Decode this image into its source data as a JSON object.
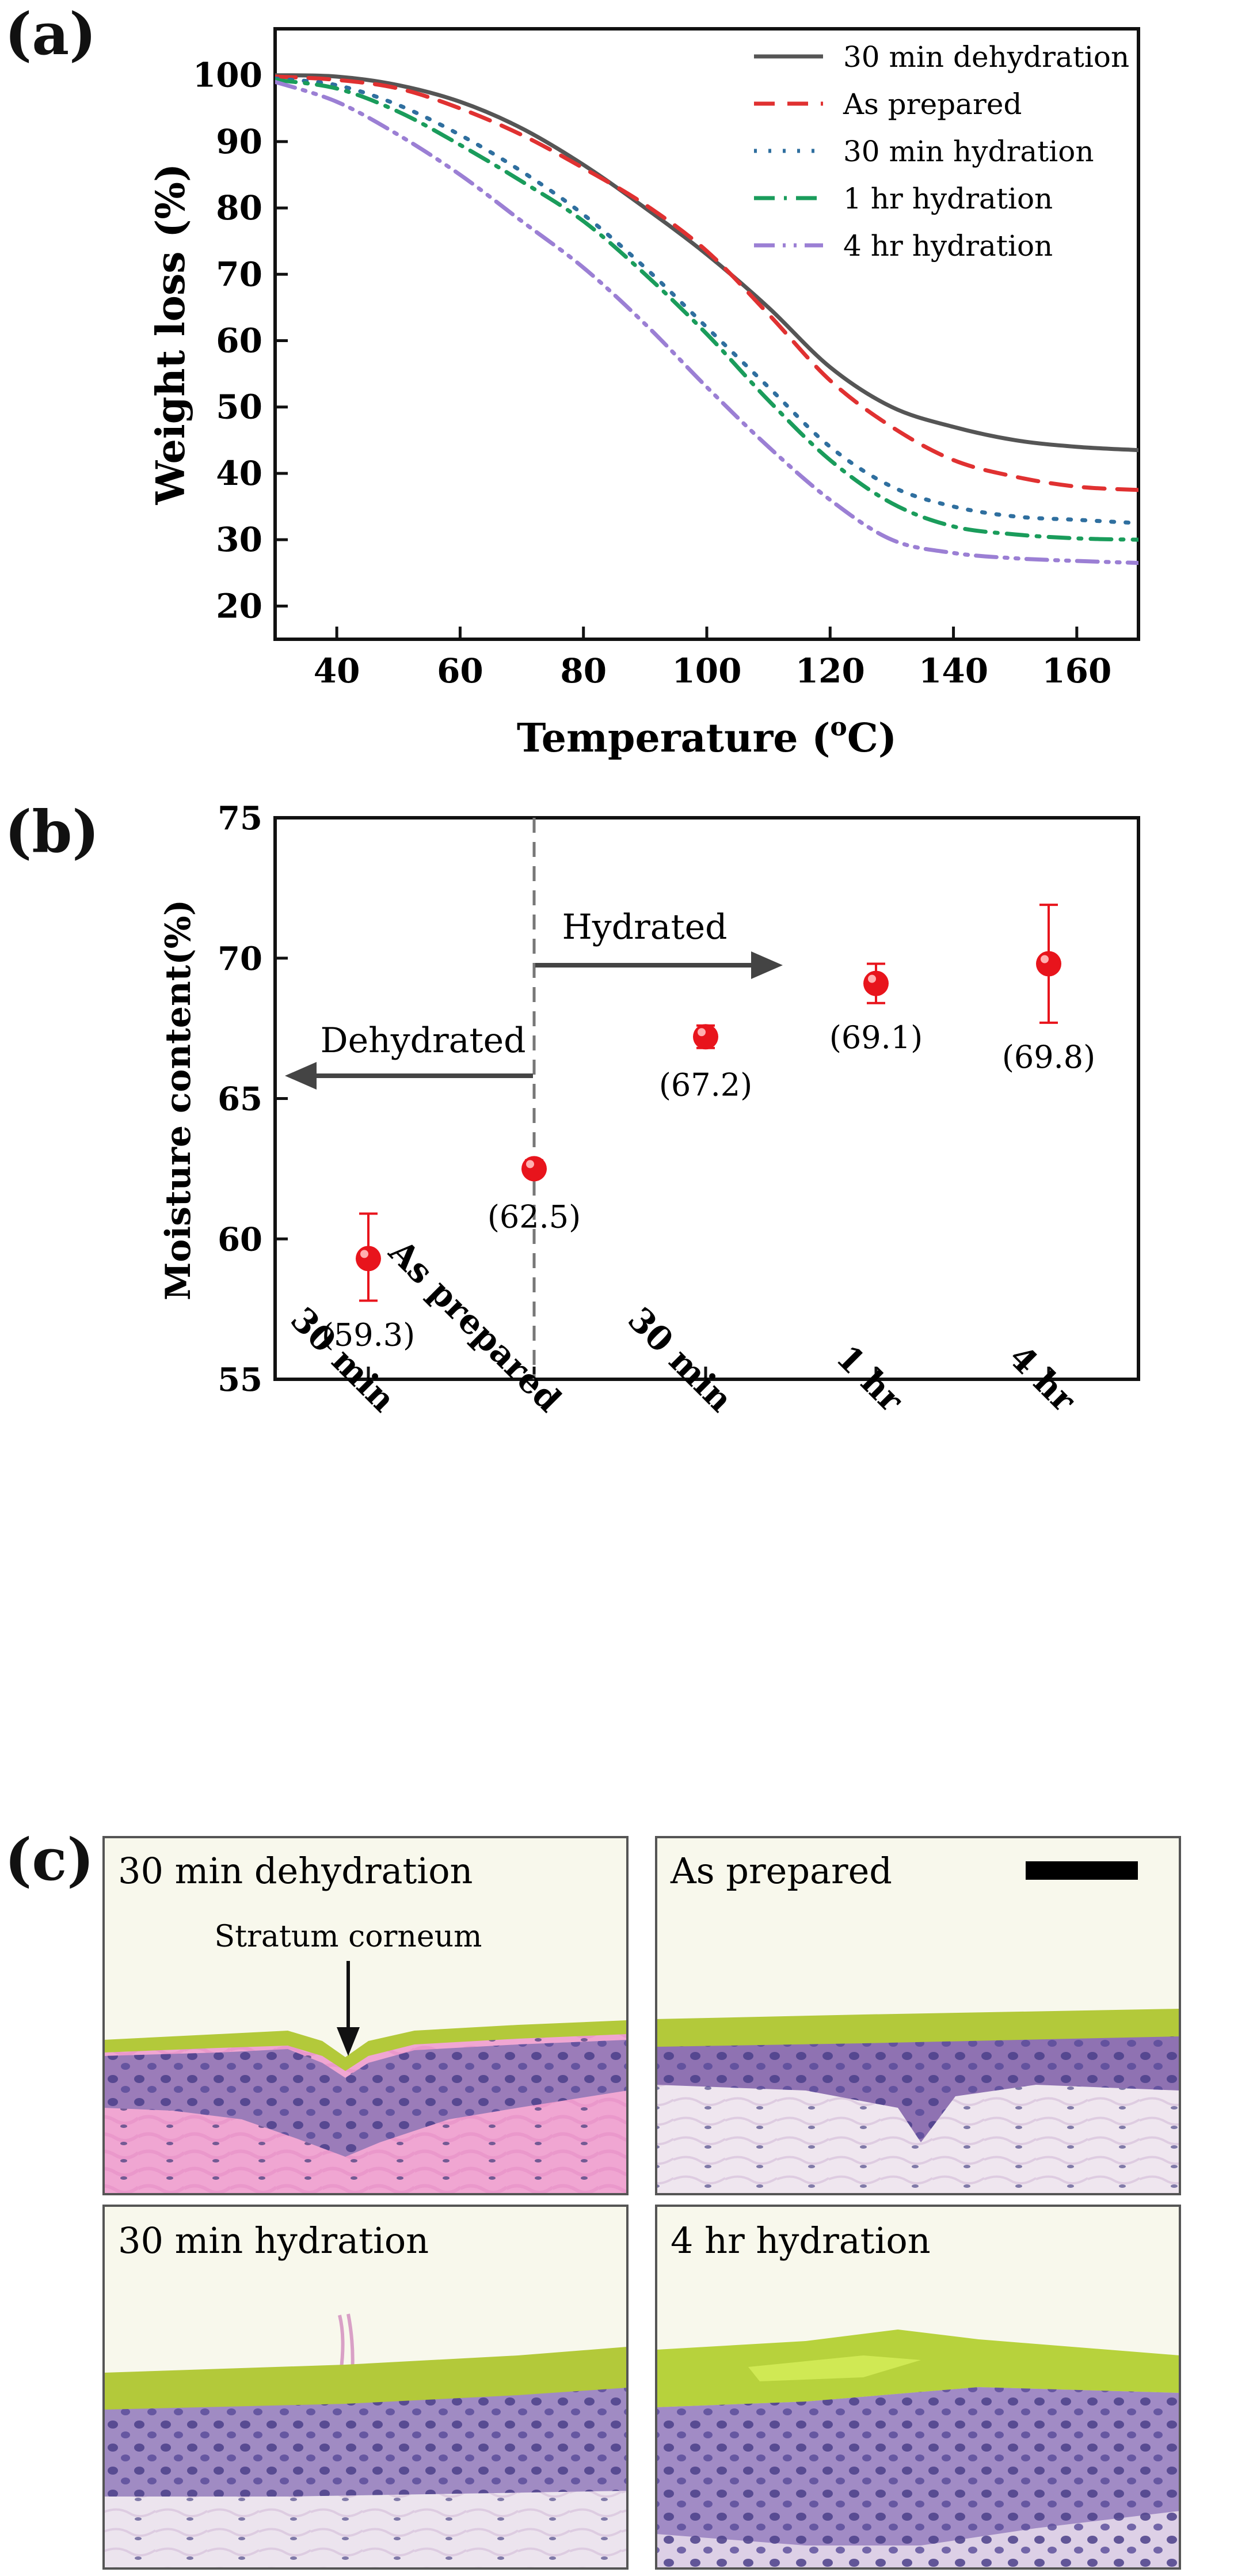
{
  "panel_labels": {
    "a": "(a)",
    "b": "(b)",
    "c": "(c)"
  },
  "chart_data": [
    {
      "type": "line",
      "xlabel": "Temperature (°C)",
      "xlabel_main": "Temperature (",
      "xlabel_sup": "o",
      "xlabel_unit": "C)",
      "ylabel": "Weight loss (%)",
      "xlim": [
        30,
        170
      ],
      "ylim": [
        15,
        107
      ],
      "xticks": [
        40,
        60,
        80,
        100,
        120,
        140,
        160
      ],
      "yticks": [
        20,
        30,
        40,
        50,
        60,
        70,
        80,
        90,
        100
      ],
      "legend_position": "top-right",
      "x": [
        30,
        40,
        50,
        60,
        70,
        80,
        90,
        100,
        110,
        120,
        130,
        140,
        150,
        160,
        170
      ],
      "series": [
        {
          "name": "30 min dehydration",
          "color": "#555555",
          "dash": "solid",
          "values": [
            100,
            99.8,
            98.5,
            96,
            92,
            86.5,
            80,
            73,
            65,
            56,
            50,
            47,
            45,
            44,
            43.5
          ]
        },
        {
          "name": "As prepared",
          "color": "#e03131",
          "dash": "dashed",
          "values": [
            99.8,
            99.3,
            98,
            95,
            91,
            86,
            80.5,
            73.5,
            64,
            54,
            47,
            42,
            39.5,
            38,
            37.5
          ]
        },
        {
          "name": "30 min hydration",
          "color": "#2f6f9f",
          "dash": "dotted",
          "values": [
            99.5,
            98.5,
            95.5,
            91,
            85.5,
            79,
            71,
            62,
            53,
            44,
            38,
            35,
            33.5,
            33,
            32.5
          ]
        },
        {
          "name": "1 hr hydration",
          "color": "#1a9c5b",
          "dash": "dashdot",
          "values": [
            99.3,
            98,
            94.5,
            89.5,
            84,
            78,
            70,
            61,
            51,
            42,
            35.5,
            32,
            30.8,
            30.2,
            30
          ]
        },
        {
          "name": "4 hr hydration",
          "color": "#9b7fd4",
          "dash": "dashdotdot",
          "values": [
            99,
            96,
            91,
            85,
            78,
            71,
            62.5,
            53,
            44,
            36,
            30,
            28,
            27.2,
            26.8,
            26.5
          ]
        }
      ]
    },
    {
      "type": "scatter",
      "ylabel": "Moisture content(%)",
      "categories": [
        "30 min",
        "As prepared",
        "30 min",
        "1 hr",
        "4 hr"
      ],
      "ylim": [
        55,
        75
      ],
      "yticks": [
        55,
        60,
        65,
        70,
        75
      ],
      "values": [
        59.3,
        62.5,
        67.2,
        69.1,
        69.8
      ],
      "error_low": [
        57.8,
        62.3,
        66.8,
        68.4,
        67.7
      ],
      "error_high": [
        60.9,
        62.8,
        67.6,
        69.8,
        71.9
      ],
      "data_labels": [
        "(59.3)",
        "(62.5)",
        "(67.2)",
        "(69.1)",
        "(69.8)"
      ],
      "annotations": {
        "hydrated": "Hydrated",
        "dehydrated": "Dehydrated"
      },
      "marker_color": "#e8141c"
    }
  ],
  "histology": {
    "scale_bar_color": "#000000",
    "stratum_label": "Stratum corneum",
    "panels": [
      {
        "title": "30 min dehydration"
      },
      {
        "title": "As prepared"
      },
      {
        "title": "30 min hydration"
      },
      {
        "title": "4 hr hydration"
      }
    ]
  }
}
